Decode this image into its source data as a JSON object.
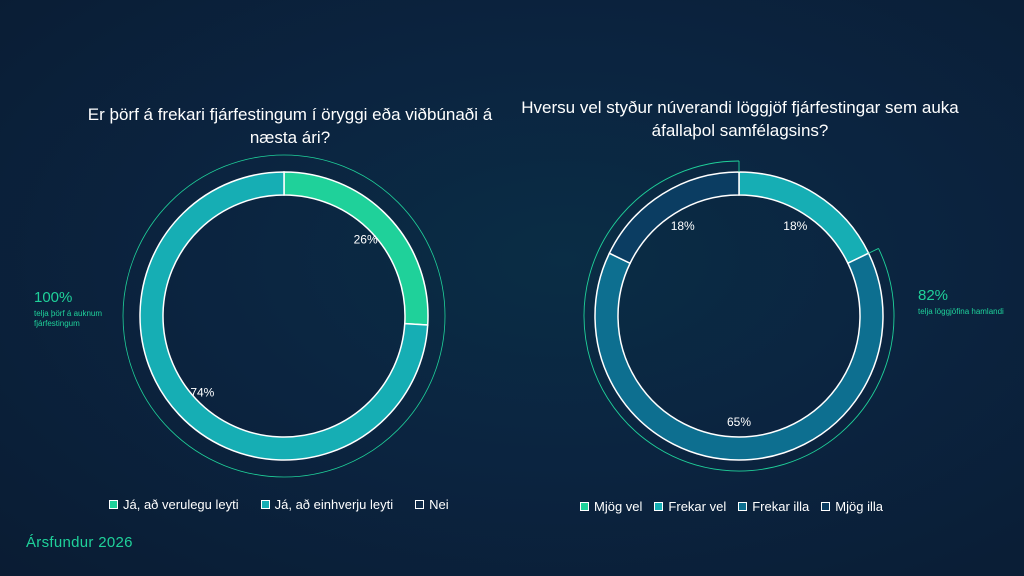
{
  "chart_data": [
    {
      "type": "pie",
      "title": "Er þörf á frekari fjárfestingum í öryggi eða viðbúnaði á næsta ári?",
      "categories": [
        "Já, að verulegu leyti",
        "Já, að einhverju leyti",
        "Nei"
      ],
      "values": [
        26,
        74,
        0
      ],
      "labels": [
        "26%",
        "74%",
        ""
      ],
      "colors": [
        "#1fd19a",
        "#16aeb4",
        "#0f2a47"
      ],
      "callout": {
        "value": "100%",
        "text": "telja þörf á auknum fjárfestingum"
      },
      "legend": "bottom"
    },
    {
      "type": "pie",
      "title": "Hversu vel styður núverandi löggjöf fjárfestingar sem auka áfallaþol samfélagsins?",
      "categories": [
        "Mjög vel",
        "Frekar vel",
        "Frekar illa",
        "Mjög illa"
      ],
      "values": [
        0,
        18,
        65,
        18
      ],
      "labels": [
        "",
        "18%",
        "65%",
        "18%"
      ],
      "colors": [
        "#1fd19a",
        "#16aeb4",
        "#0d6f90",
        "#0b3d62"
      ],
      "callout": {
        "value": "82%",
        "text": "telja löggjöfina hamlandi"
      },
      "legend": "bottom"
    }
  ],
  "footer": {
    "brand": "Ársfundur 2026"
  }
}
